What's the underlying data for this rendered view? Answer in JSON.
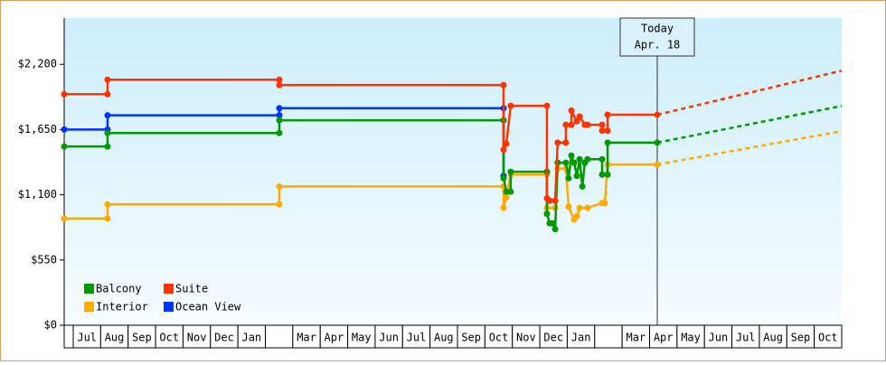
{
  "chart_data": {
    "type": "step-line",
    "xlim": [
      -0.33,
      28
    ],
    "categories": [
      "Jul",
      "Aug",
      "Sep",
      "Oct",
      "Nov",
      "Dec",
      "Jan",
      null,
      "Mar",
      "Apr",
      "May",
      "Jun",
      "Jul",
      "Aug",
      "Sep",
      "Oct",
      "Nov",
      "Dec",
      "Jan",
      null,
      "Mar",
      "Apr",
      "May",
      "Jun",
      "Jul",
      "Aug",
      "Sep",
      "Oct"
    ],
    "ylim": [
      0,
      2590
    ],
    "yticks": [
      {
        "value": 0,
        "label": "$0"
      },
      {
        "value": 550,
        "label": "$550"
      },
      {
        "value": 1100,
        "label": "$1,100"
      },
      {
        "value": 1650,
        "label": "$1,650"
      },
      {
        "value": 2200,
        "label": "$2,200"
      }
    ],
    "today": {
      "x": 21.28,
      "label": "Today",
      "date": "Apr. 18"
    },
    "series": [
      {
        "name": "Balcony",
        "color": "#009900",
        "x": [
          -0.33,
          1.25,
          1.25,
          7.51,
          7.51,
          15.68,
          15.68,
          15.78,
          15.94,
          15.94,
          17.26,
          17.26,
          17.36,
          17.46,
          17.56,
          17.65,
          17.95,
          18.05,
          18.15,
          18.25,
          18.35,
          18.45,
          18.55,
          18.64,
          18.74,
          19.27,
          19.27,
          19.47,
          19.47,
          21.28
        ],
        "values": [
          1507,
          1507,
          1621,
          1621,
          1728,
          1728,
          1240,
          1126,
          1126,
          1294,
          1294,
          940,
          860,
          860,
          810,
          1370,
          1370,
          1240,
          1430,
          1370,
          1260,
          1400,
          1170,
          1370,
          1400,
          1400,
          1270,
          1270,
          1540,
          1540
        ],
        "projection_end": 1849
      },
      {
        "name": "Suite",
        "color": "#ff3300",
        "x": [
          -0.33,
          1.25,
          1.25,
          7.51,
          7.51,
          15.68,
          15.68,
          15.78,
          15.94,
          17.26,
          17.26,
          17.36,
          17.56,
          17.65,
          17.95,
          17.95,
          18.15,
          18.15,
          18.35,
          18.45,
          18.64,
          18.74,
          19.27,
          19.27,
          19.47,
          19.47,
          21.28
        ],
        "values": [
          1948,
          1948,
          2070,
          2070,
          2025,
          2025,
          1480,
          1530,
          1850,
          1850,
          1070,
          1050,
          1050,
          1540,
          1540,
          1690,
          1690,
          1810,
          1720,
          1760,
          1690,
          1690,
          1690,
          1640,
          1640,
          1775,
          1775
        ],
        "projection_end": 2146
      },
      {
        "name": "Interior",
        "color": "#ffaa00",
        "x": [
          -0.33,
          1.25,
          1.25,
          7.51,
          7.51,
          15.68,
          15.68,
          15.78,
          15.94,
          17.26,
          17.26,
          17.56,
          17.65,
          17.95,
          18.05,
          18.25,
          18.35,
          18.45,
          18.74,
          19.27,
          19.37,
          19.47,
          21.28
        ],
        "values": [
          900,
          900,
          1020,
          1020,
          1170,
          1170,
          990,
          1080,
          1270,
          1270,
          990,
          990,
          1320,
          1320,
          1000,
          890,
          920,
          990,
          990,
          1030,
          1030,
          1355,
          1355
        ],
        "projection_end": 1636
      },
      {
        "name": "Ocean View",
        "color": "#0033ff",
        "x": [
          -0.33,
          1.25,
          1.25,
          7.51,
          7.51,
          15.68,
          15.68
        ],
        "values": [
          1650,
          1650,
          1770,
          1770,
          1830,
          1830,
          1260
        ]
      }
    ]
  }
}
